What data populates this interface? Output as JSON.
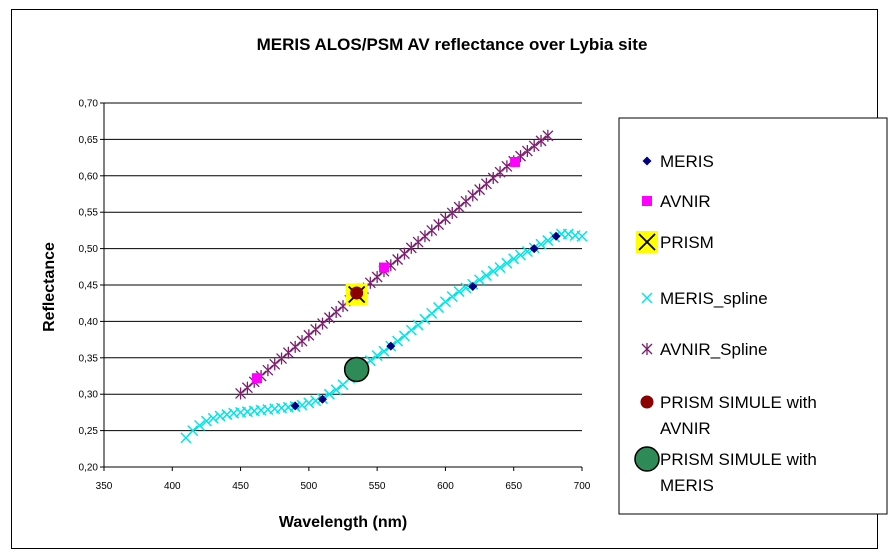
{
  "chart_data": {
    "type": "scatter",
    "title": "MERIS ALOS/PSM AV reflectance over Lybia site",
    "xlabel": "Wavelength (nm)",
    "ylabel": "Reflectance",
    "xlim": [
      350,
      700
    ],
    "ylim": [
      0.2,
      0.7
    ],
    "x_ticks": [
      "350",
      "400",
      "450",
      "500",
      "550",
      "600",
      "650",
      "700"
    ],
    "y_ticks": [
      "0,20",
      "0,25",
      "0,30",
      "0,35",
      "0,40",
      "0,45",
      "0,50",
      "0,55",
      "0,60",
      "0,65",
      "0,70"
    ],
    "grid": "horizontal",
    "legend_position": "right",
    "series": [
      {
        "name": "MERIS",
        "marker": "diamond",
        "color": "#000080",
        "x": [
          490,
          510,
          560,
          620,
          665,
          681
        ],
        "y": [
          0.284,
          0.293,
          0.366,
          0.448,
          0.5,
          0.517
        ]
      },
      {
        "name": "AVNIR",
        "marker": "square",
        "color": "#ff00ff",
        "x": [
          462,
          555,
          651
        ],
        "y": [
          0.322,
          0.474,
          0.619
        ]
      },
      {
        "name": "PRISM",
        "marker": "x-yellow-box",
        "color": "#000000",
        "x": [
          535
        ],
        "y": [
          0.437
        ]
      },
      {
        "name": "MERIS_spline",
        "marker": "x",
        "color": "#00e5e5",
        "x": [
          410,
          415,
          420,
          425,
          430,
          435,
          440,
          445,
          450,
          455,
          460,
          465,
          470,
          475,
          480,
          485,
          490,
          495,
          500,
          505,
          510,
          515,
          520,
          525,
          530,
          535,
          540,
          545,
          550,
          555,
          560,
          565,
          570,
          575,
          580,
          585,
          590,
          595,
          600,
          605,
          610,
          615,
          620,
          625,
          630,
          635,
          640,
          645,
          650,
          655,
          660,
          665,
          670,
          675,
          680,
          685,
          690,
          695,
          700
        ],
        "y": [
          0.24,
          0.25,
          0.257,
          0.263,
          0.267,
          0.27,
          0.272,
          0.274,
          0.275,
          0.276,
          0.277,
          0.278,
          0.279,
          0.28,
          0.281,
          0.282,
          0.283,
          0.285,
          0.288,
          0.291,
          0.294,
          0.3,
          0.306,
          0.313,
          0.322,
          0.33,
          0.338,
          0.346,
          0.353,
          0.359,
          0.366,
          0.373,
          0.38,
          0.388,
          0.395,
          0.403,
          0.411,
          0.419,
          0.427,
          0.434,
          0.441,
          0.446,
          0.451,
          0.457,
          0.463,
          0.469,
          0.474,
          0.48,
          0.486,
          0.491,
          0.496,
          0.501,
          0.506,
          0.511,
          0.516,
          0.52,
          0.52,
          0.518,
          0.517
        ]
      },
      {
        "name": "AVNIR_Spline",
        "marker": "asterisk",
        "color": "#7a1f6e",
        "x": [
          450,
          455,
          460,
          465,
          470,
          475,
          480,
          485,
          490,
          495,
          500,
          505,
          510,
          515,
          520,
          525,
          530,
          535,
          540,
          545,
          550,
          555,
          560,
          565,
          570,
          575,
          580,
          585,
          590,
          595,
          600,
          605,
          610,
          615,
          620,
          625,
          630,
          635,
          640,
          645,
          650,
          655,
          660,
          665,
          670,
          675
        ],
        "y": [
          0.301,
          0.309,
          0.317,
          0.325,
          0.333,
          0.341,
          0.349,
          0.357,
          0.365,
          0.373,
          0.381,
          0.389,
          0.397,
          0.405,
          0.413,
          0.421,
          0.429,
          0.437,
          0.445,
          0.453,
          0.461,
          0.469,
          0.477,
          0.485,
          0.493,
          0.501,
          0.509,
          0.517,
          0.525,
          0.533,
          0.541,
          0.549,
          0.557,
          0.565,
          0.573,
          0.581,
          0.589,
          0.597,
          0.605,
          0.613,
          0.62,
          0.627,
          0.634,
          0.641,
          0.648,
          0.655
        ]
      },
      {
        "name": "PRISM SIMULE with AVNIR",
        "marker": "circle",
        "color": "#8b0000",
        "x": [
          535
        ],
        "y": [
          0.439
        ]
      },
      {
        "name": "PRISM SIMULE with MERIS",
        "marker": "big-circle",
        "color": "#2e8b57",
        "x": [
          535
        ],
        "y": [
          0.334
        ]
      }
    ]
  }
}
